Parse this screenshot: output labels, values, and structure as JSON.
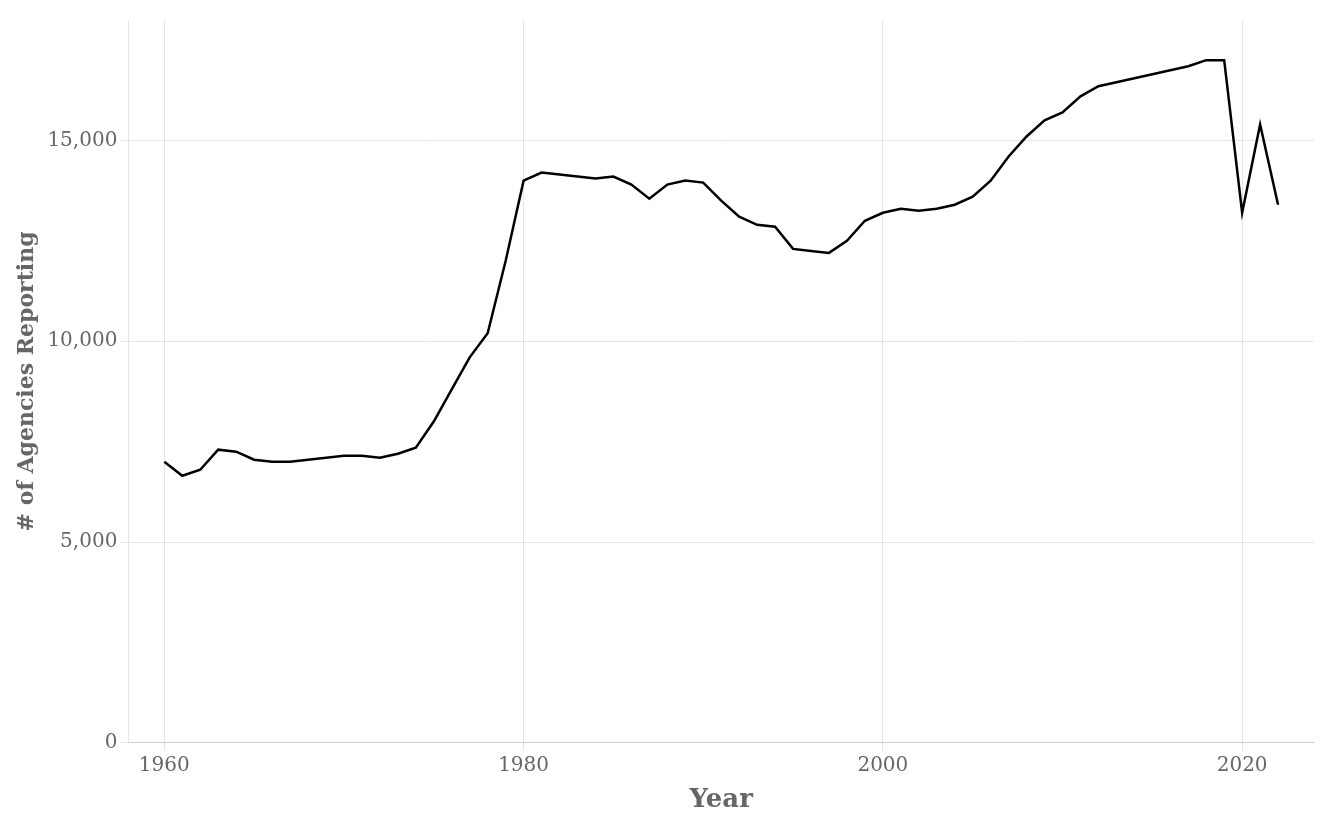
{
  "chart_data": {
    "type": "line",
    "xlabel": "Year",
    "ylabel": "# of Agencies Reporting",
    "x": [
      1960,
      1961,
      1962,
      1963,
      1964,
      1965,
      1966,
      1967,
      1968,
      1969,
      1970,
      1971,
      1972,
      1973,
      1974,
      1975,
      1976,
      1977,
      1978,
      1979,
      1980,
      1981,
      1982,
      1983,
      1984,
      1985,
      1986,
      1987,
      1988,
      1989,
      1990,
      1991,
      1992,
      1993,
      1994,
      1995,
      1996,
      1997,
      1998,
      1999,
      2000,
      2001,
      2002,
      2003,
      2004,
      2005,
      2006,
      2007,
      2008,
      2009,
      2010,
      2011,
      2012,
      2013,
      2014,
      2015,
      2016,
      2017,
      2018,
      2019,
      2020,
      2021,
      2022
    ],
    "values": [
      7000,
      6650,
      6800,
      7300,
      7250,
      7050,
      7000,
      7000,
      7050,
      7100,
      7150,
      7150,
      7100,
      7200,
      7350,
      8000,
      8800,
      9600,
      10200,
      12000,
      14000,
      14200,
      14150,
      14100,
      14050,
      14100,
      13900,
      13550,
      13900,
      14000,
      13950,
      13500,
      13100,
      12900,
      12850,
      12300,
      12250,
      12200,
      12500,
      13000,
      13200,
      13300,
      13250,
      13300,
      13400,
      13600,
      14000,
      14600,
      15100,
      15500,
      15700,
      16100,
      16350,
      16450,
      16550,
      16650,
      16750,
      16850,
      17000,
      17000,
      13200,
      15400,
      13400
    ],
    "color": "#000000",
    "xlim": [
      1958,
      2024
    ],
    "ylim": [
      0,
      18000
    ],
    "xticks": [
      1960,
      1980,
      2000,
      2020
    ],
    "yticks": [
      0,
      {
        "value": 5000,
        "label": "5,000"
      },
      {
        "value": 10000,
        "label": "10,000"
      },
      {
        "value": 15000,
        "label": "15,000"
      }
    ],
    "grid": true
  }
}
